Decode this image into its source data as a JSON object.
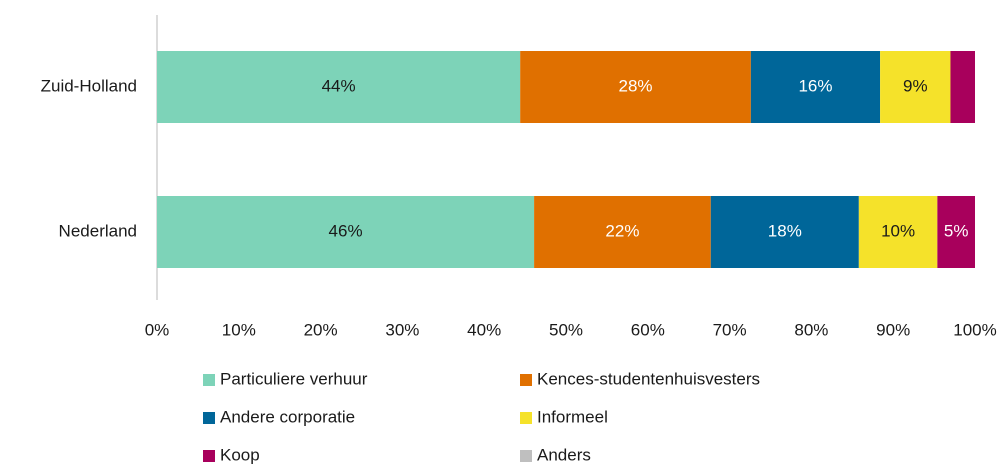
{
  "chart_data": {
    "type": "stacked_barh",
    "categories": [
      "Zuid-Holland",
      "Nederland"
    ],
    "series": [
      {
        "name": "Particuliere verhuur",
        "color": "#7dd3b8",
        "label_color": "#1a1a1a",
        "values": [
          44.4,
          46.1
        ],
        "value_labels": [
          "44%",
          "46%"
        ]
      },
      {
        "name": "Kences-studentenhuisvesters",
        "color": "#e07000",
        "label_color": "#ffffff",
        "values": [
          28.2,
          21.6
        ],
        "value_labels": [
          "28%",
          "22%"
        ]
      },
      {
        "name": "Andere corporatie",
        "color": "#006699",
        "label_color": "#ffffff",
        "values": [
          15.8,
          18.1
        ],
        "value_labels": [
          "16%",
          "18%"
        ]
      },
      {
        "name": "Informeel",
        "color": "#f5e22a",
        "label_color": "#1a1a1a",
        "values": [
          8.6,
          9.6
        ],
        "value_labels": [
          "9%",
          "10%"
        ]
      },
      {
        "name": "Koop",
        "color": "#a8005c",
        "label_color": "#ffffff",
        "values": [
          3.0,
          4.6
        ],
        "value_labels": [
          null,
          "5%"
        ]
      },
      {
        "name": "Anders",
        "color": "#bfbfbf",
        "label_color": "#1a1a1a",
        "values": [
          0,
          0
        ],
        "value_labels": [
          null,
          null
        ]
      }
    ],
    "xlim": [
      0,
      100
    ],
    "xticks": [
      {
        "value": 0,
        "label": "0%"
      },
      {
        "value": 10,
        "label": "10%"
      },
      {
        "value": 20,
        "label": "20%"
      },
      {
        "value": 30,
        "label": "30%"
      },
      {
        "value": 40,
        "label": "40%"
      },
      {
        "value": 50,
        "label": "50%"
      },
      {
        "value": 60,
        "label": "60%"
      },
      {
        "value": 70,
        "label": "70%"
      },
      {
        "value": 80,
        "label": "80%"
      },
      {
        "value": 90,
        "label": "90%"
      },
      {
        "value": 100,
        "label": "100%"
      }
    ],
    "legend": "bottom"
  }
}
